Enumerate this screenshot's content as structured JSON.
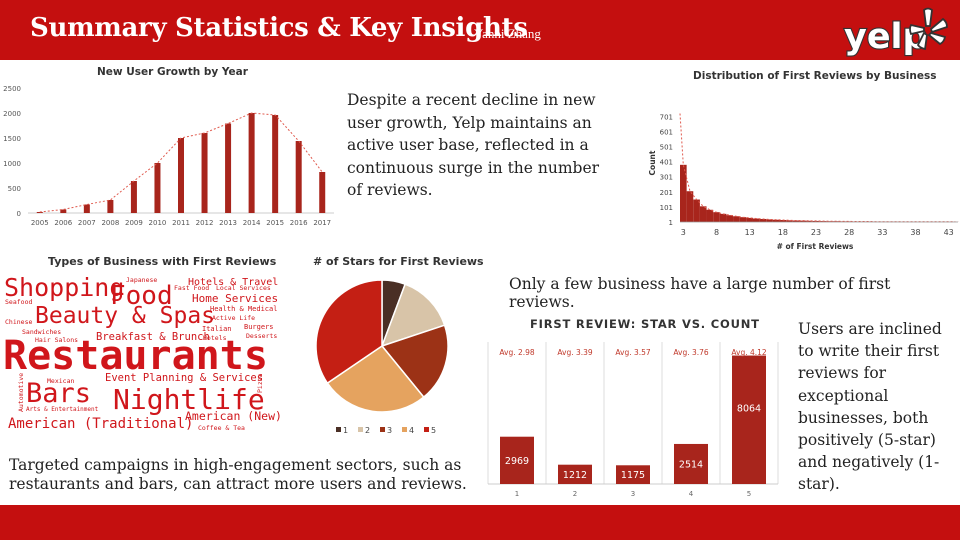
{
  "header": {
    "title": "Summary Statistics & Key Insights",
    "author": "Yanni Zhang",
    "logo_text": "yelp"
  },
  "colors": {
    "brand_red": "#c40f0f",
    "bar_red": "#a8251c",
    "trend_red": "#e05a4e"
  },
  "insights": {
    "growth": "Despite a recent decline in new user growth, Yelp maintains an active user base, reflected in a continuous surge in the number of reviews.",
    "distribution": "Only a few business have a large number of first reviews.",
    "stars": "Users are inclined to write their first reviews for exceptional businesses, both positively (5-star) and negatively (1-star).",
    "campaign": "Targeted campaigns in high-engagement sectors, such as restaurants and bars, can attract more users and reviews."
  },
  "wordcloud": {
    "title": "Types of Business with First Reviews",
    "words": [
      "Restaurants",
      "Shopping",
      "Food",
      "Beauty & Spas",
      "Bars",
      "Nightlife",
      "American (Traditional)",
      "American (New)",
      "Event Planning & Services",
      "Breakfast & Brunch",
      "Home Services",
      "Hotels & Travel",
      "Health & Medical",
      "Active Life",
      "Fast Food",
      "Local Services",
      "Japanese",
      "Seafood",
      "Chinese",
      "Sandwiches",
      "Hair Salons",
      "Italian",
      "Burgers",
      "Desserts",
      "Hotels",
      "Mexican",
      "Automotive",
      "Arts & Entertainment",
      "Coffee & Tea",
      "Pizza"
    ]
  },
  "chart_data": [
    {
      "type": "bar",
      "title": "New User Growth by Year",
      "categories": [
        "2005",
        "2006",
        "2007",
        "2008",
        "2009",
        "2010",
        "2011",
        "2012",
        "2013",
        "2014",
        "2015",
        "2016",
        "2017"
      ],
      "values": [
        20,
        70,
        170,
        260,
        640,
        1000,
        1500,
        1600,
        1790,
        2000,
        1960,
        1440,
        820
      ],
      "ylim": [
        0,
        2500
      ],
      "yticks": [
        0,
        500,
        1000,
        1500,
        2000,
        2500
      ],
      "trendline": true,
      "grid": false
    },
    {
      "type": "bar",
      "title": "Distribution of First Reviews by Business",
      "xlabel": "# of First Reviews",
      "ylabel": "Count",
      "xticks": [
        "3",
        "8",
        "13",
        "18",
        "23",
        "28",
        "33",
        "38",
        "43"
      ],
      "yticks": [
        1,
        101,
        201,
        301,
        401,
        501,
        601,
        701
      ],
      "ylim": [
        1,
        750
      ],
      "x": [
        3,
        4,
        5,
        6,
        7,
        8,
        9,
        10,
        11,
        12,
        13,
        14,
        15,
        16,
        17,
        18,
        19,
        20,
        21,
        22,
        23,
        24,
        25,
        26,
        27,
        28,
        29,
        30,
        31,
        32,
        33,
        34,
        35,
        36,
        37,
        38,
        39,
        40,
        41,
        42,
        43,
        44
      ],
      "values": [
        380,
        205,
        150,
        105,
        82,
        66,
        55,
        46,
        39,
        33,
        28,
        24,
        21,
        18,
        16,
        14,
        12,
        11,
        10,
        9,
        8,
        7,
        6,
        6,
        5,
        5,
        4,
        4,
        4,
        3,
        3,
        3,
        3,
        2,
        2,
        2,
        2,
        2,
        2,
        2,
        2,
        2
      ],
      "trendline": true
    },
    {
      "type": "pie",
      "title": "# of Stars for First Reviews",
      "categories": [
        "1",
        "2",
        "3",
        "4",
        "5"
      ],
      "values": [
        5.7,
        14.2,
        19.2,
        26.4,
        34.5
      ],
      "colors": [
        "#4a2f25",
        "#d8c4a8",
        "#9c3216",
        "#e5a35f",
        "#c41f14"
      ],
      "legend": "bottom"
    },
    {
      "type": "bar",
      "title": "FIRST REVIEW: STAR VS. COUNT",
      "categories": [
        "1",
        "2",
        "3",
        "4",
        "5"
      ],
      "values": [
        2969,
        1212,
        1175,
        2514,
        8064
      ],
      "data_labels": [
        "2969",
        "1212",
        "1175",
        "2514",
        "8064"
      ],
      "averages": [
        "Avg. 2.98",
        "Avg. 3.39",
        "Avg. 3.57",
        "Avg. 3.76",
        "Avg. 4.12"
      ],
      "ylim": [
        0,
        8600
      ]
    }
  ]
}
